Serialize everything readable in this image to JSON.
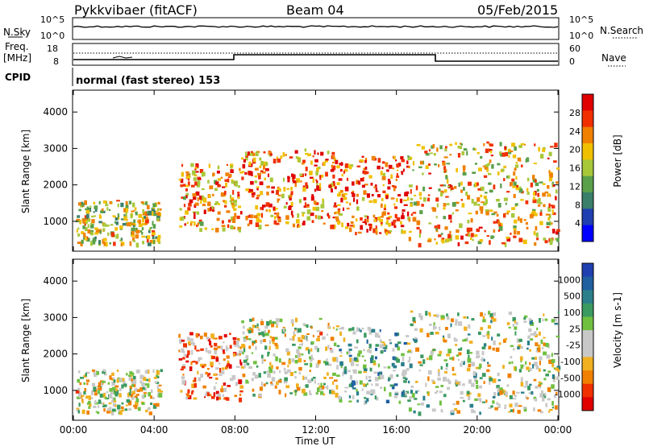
{
  "header": {
    "station": "Pykkvibaer (fitACF)",
    "beam": "Beam 04",
    "date": "05/Feb/2015"
  },
  "status_panels": {
    "nsky": {
      "label": "N.Sky",
      "ticks": [
        "10^5",
        "10^0"
      ]
    },
    "nsearch": {
      "label": "N.Search",
      "ticks": [
        "10^5",
        "10^0"
      ]
    },
    "freq": {
      "label": "Freq.",
      "unit": "[MHz]",
      "ticks": [
        "18",
        "8"
      ]
    },
    "nave": {
      "label": "Nave",
      "ticks": [
        "60",
        "0"
      ]
    },
    "cpid": {
      "label": "CPID",
      "text": "normal (fast stereo) 153"
    }
  },
  "colors": {
    "power_scale": [
      "#0000ff",
      "#1f3fb0",
      "#3a7f6a",
      "#5aa04a",
      "#a8c83a",
      "#f0c000",
      "#f08000",
      "#f03000",
      "#e00000"
    ],
    "velocity_scale": [
      "#e00000",
      "#f03000",
      "#f08000",
      "#f0b020",
      "#c8c8c8",
      "#c8c8c8",
      "#70c040",
      "#3a9a60",
      "#2a7f8a",
      "#1f5fa0",
      "#1f3fb0"
    ]
  },
  "chart_data": [
    {
      "type": "heatmap",
      "title": "",
      "ylabel": "Slant Range [km]",
      "xlabel": "",
      "x_ticks": [
        "00:00",
        "04:00",
        "08:00",
        "12:00",
        "16:00",
        "20:00",
        "00:00"
      ],
      "y_ticks": [
        "1000",
        "2000",
        "3000",
        "4000"
      ],
      "ylim": [
        180,
        4600
      ],
      "colorbar": {
        "label": "Power [dB]",
        "ticks": [
          "4",
          "8",
          "12",
          "16",
          "20",
          "24",
          "28"
        ]
      },
      "bands": [
        {
          "t0": 0.1,
          "t1": 4.3,
          "r0": 400,
          "r1": 1600,
          "level": 0.55
        },
        {
          "t0": 5.2,
          "t1": 8.3,
          "r0": 800,
          "r1": 2600,
          "level": 0.7
        },
        {
          "t0": 8.3,
          "t1": 13.0,
          "r0": 900,
          "r1": 3000,
          "level": 0.75
        },
        {
          "t0": 13.0,
          "t1": 16.5,
          "r0": 700,
          "r1": 2800,
          "level": 0.8
        },
        {
          "t0": 16.5,
          "t1": 24.0,
          "r0": 400,
          "r1": 3200,
          "level": 0.65
        }
      ]
    },
    {
      "type": "heatmap",
      "title": "",
      "ylabel": "Slant Range [km]",
      "xlabel": "Time UT",
      "x_ticks": [
        "00:00",
        "04:00",
        "08:00",
        "12:00",
        "16:00",
        "20:00",
        "00:00"
      ],
      "y_ticks": [
        "1000",
        "2000",
        "3000",
        "4000"
      ],
      "ylim": [
        180,
        4600
      ],
      "colorbar": {
        "label": "Velocity [m s-1]",
        "ticks": [
          "-1000",
          "-500",
          "-100",
          "-25",
          "25",
          "100",
          "500",
          "1000"
        ]
      },
      "bands": [
        {
          "t0": 0.1,
          "t1": 4.3,
          "r0": 400,
          "r1": 1600,
          "level": 0.45
        },
        {
          "t0": 5.2,
          "t1": 8.3,
          "r0": 800,
          "r1": 2600,
          "level": 0.25
        },
        {
          "t0": 8.3,
          "t1": 13.0,
          "r0": 900,
          "r1": 3000,
          "level": 0.45
        },
        {
          "t0": 13.0,
          "t1": 16.5,
          "r0": 700,
          "r1": 2800,
          "level": 0.6
        },
        {
          "t0": 16.5,
          "t1": 24.0,
          "r0": 400,
          "r1": 3200,
          "level": 0.5
        }
      ]
    }
  ]
}
